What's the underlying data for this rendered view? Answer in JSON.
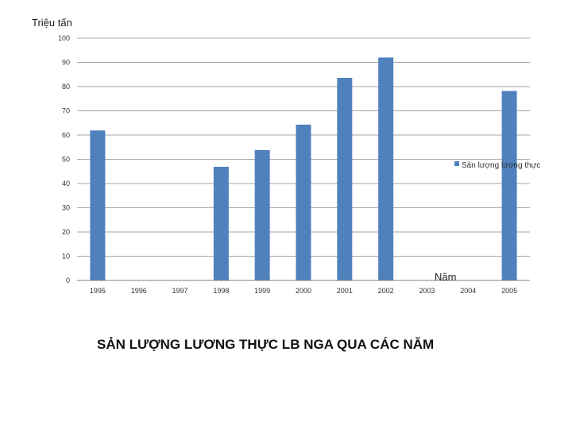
{
  "chart_data": {
    "type": "bar",
    "title": "SẢN LƯỢNG LƯƠNG THỰC LB NGA QUA CÁC NĂM",
    "ylabel": "Triệu tấn",
    "xlabel": "Năm",
    "categories": [
      "1995",
      "1996",
      "1997",
      "1998",
      "1999",
      "2000",
      "2001",
      "2002",
      "2003",
      "2004",
      "2005"
    ],
    "series": [
      {
        "name": "Sản lượng lương thực",
        "color": "#4f81bd",
        "values": [
          61.9,
          null,
          null,
          46.9,
          53.8,
          64.3,
          83.6,
          92.0,
          null,
          null,
          78.2
        ]
      }
    ],
    "ylim": [
      0,
      100
    ],
    "yticks": [
      "0",
      "10",
      "20",
      "30",
      "40",
      "50",
      "60",
      "70",
      "80",
      "90",
      "100"
    ],
    "grid": true,
    "legend": "right"
  }
}
